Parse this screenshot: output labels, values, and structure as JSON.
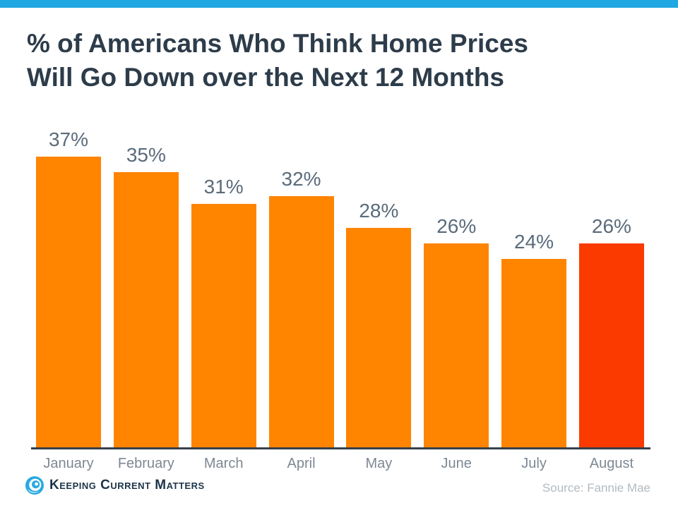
{
  "page": {
    "top_bar_color": "#1FA8E1",
    "background_color": "#FFFFFF"
  },
  "title": {
    "line1": "% of Americans Who Think Home Prices",
    "line2": "Will Go Down over the Next 12 Months"
  },
  "chart_data": {
    "type": "bar",
    "title": "% of Americans Who Think Home Prices Will Go Down over the Next 12 Months",
    "categories": [
      "January",
      "February",
      "March",
      "April",
      "May",
      "June",
      "July",
      "August"
    ],
    "values": [
      37,
      35,
      31,
      32,
      28,
      26,
      24,
      26
    ],
    "value_labels": [
      "37%",
      "35%",
      "31%",
      "32%",
      "28%",
      "26%",
      "24%",
      "26%"
    ],
    "bar_colors": [
      "#FF8400",
      "#FF8400",
      "#FF8400",
      "#FF8400",
      "#FF8400",
      "#FF8400",
      "#FF8400",
      "#FB3A00"
    ],
    "highlight_index": 7,
    "highlight_color": "#FB3A00",
    "default_bar_color": "#FF8400",
    "xlabel": "",
    "ylabel": "",
    "ylim": [
      0,
      40
    ],
    "grid": false,
    "legend": false,
    "data_label_color": "#5A6B7B",
    "tick_label_color": "#7D8893",
    "axis_line_color": "#37404A"
  },
  "footer": {
    "logo_text": "Keeping Current Matters",
    "source": "Source: Fannie Mae"
  }
}
